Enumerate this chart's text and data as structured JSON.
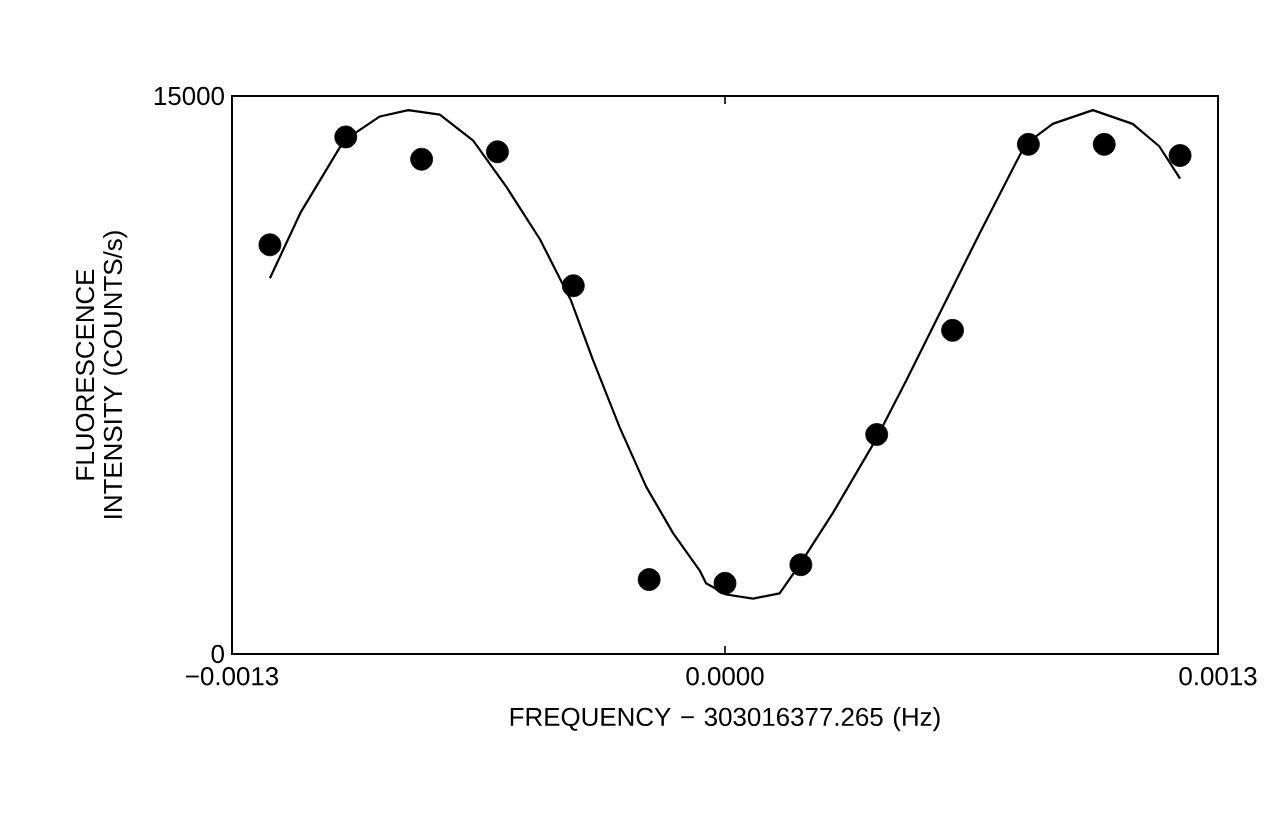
{
  "chart_data": {
    "type": "scatter",
    "xlabel": "FREQUENCY − 303016377.265 (Hz)",
    "ylabel": "FLUORESCENCE INTENSITY (COUNTS/s)",
    "xlim": [
      -0.0013,
      0.0013
    ],
    "xticks": [
      {
        "value": -0.0013,
        "label": "−0.0013"
      },
      {
        "value": 0,
        "label": "0.0000"
      },
      {
        "value": 0.0013,
        "label": "0.0013"
      }
    ],
    "ylim": [
      0,
      15000
    ],
    "yticks": [
      0,
      15000
    ],
    "grid": false,
    "series": [
      {
        "color": "#000000",
        "marker": "circle",
        "x": [
          -0.0012,
          -0.001,
          -0.0008,
          -0.0006,
          -0.0004,
          -0.0002,
          0,
          0.0002,
          0.0004,
          0.0006,
          0.0008,
          0.001,
          0.0012
        ],
        "values": [
          11000,
          13900,
          13300,
          13500,
          9900,
          2000,
          1900,
          2400,
          5900,
          8700,
          13700,
          13700,
          13400
        ]
      },
      {
        "type": "line",
        "color": "#000000",
        "marker": "none",
        "line_style": "solid",
        "x": [
          -0.0012,
          -0.00112,
          -0.001005,
          -0.00091,
          -0.000835,
          -0.000752,
          -0.000664,
          -0.000576,
          -0.000488,
          -0.000406,
          -0.000348,
          -0.000278,
          -0.000208,
          -0.000137,
          -6.7e-05,
          -5e-05,
          3e-06,
          7.4e-05,
          0.000144,
          0.0002,
          0.000285,
          0.000397,
          0.000478,
          0.000583,
          0.000671,
          0.000792,
          0.000864,
          0.00097,
          0.001075,
          0.001145,
          0.0012
        ],
        "values": [
          10100,
          11850,
          13800,
          14450,
          14620,
          14500,
          13800,
          12550,
          11150,
          9500,
          7900,
          6100,
          4500,
          3250,
          2250,
          1900,
          1600,
          1490,
          1630,
          2450,
          3800,
          5750,
          7350,
          9500,
          11300,
          13700,
          14250,
          14620,
          14250,
          13650,
          12780
        ]
      }
    ]
  }
}
